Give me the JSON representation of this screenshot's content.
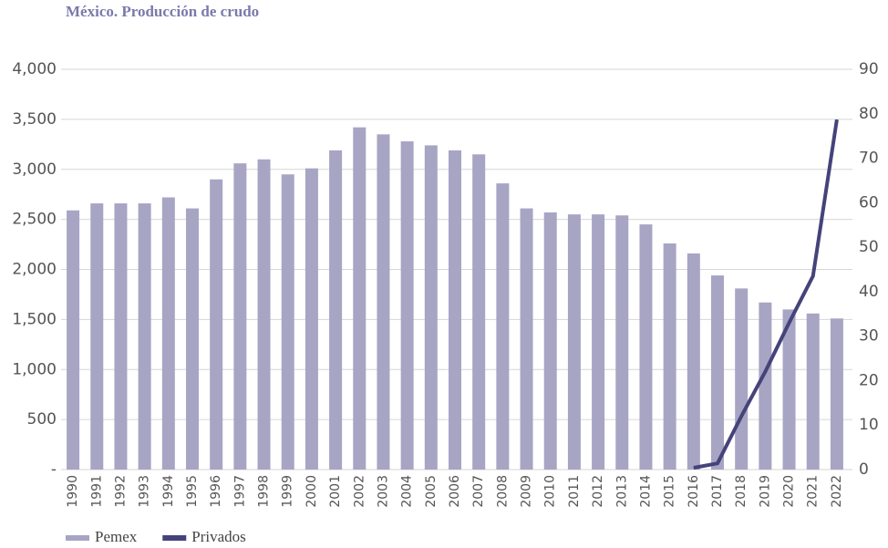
{
  "chart_data": {
    "type": "bar+line",
    "title": "México. Producción de crudo",
    "categories": [
      "1990",
      "1991",
      "1992",
      "1993",
      "1994",
      "1995",
      "1996",
      "1997",
      "1998",
      "1999",
      "2000",
      "2001",
      "2002",
      "2003",
      "2004",
      "2005",
      "2006",
      "2007",
      "2008",
      "2009",
      "2010",
      "2011",
      "2012",
      "2013",
      "2014",
      "2015",
      "2016",
      "2017",
      "2018",
      "2019",
      "2020",
      "2021",
      "2022"
    ],
    "series": [
      {
        "name": "Pemex",
        "type": "bar",
        "color": "#a7a5c3",
        "values": [
          2590,
          2660,
          2660,
          2660,
          2720,
          2610,
          2900,
          3060,
          3100,
          2950,
          3010,
          3190,
          3420,
          3350,
          3280,
          3240,
          3190,
          3150,
          2860,
          2610,
          2570,
          2550,
          2550,
          2540,
          2450,
          2260,
          2160,
          1940,
          1810,
          1670,
          1600,
          1560,
          1510
        ]
      },
      {
        "name": "Privados",
        "type": "line",
        "axis": "y2",
        "color": "#45437a",
        "values": [
          null,
          null,
          null,
          null,
          null,
          null,
          null,
          null,
          null,
          null,
          null,
          null,
          null,
          null,
          null,
          null,
          null,
          null,
          null,
          null,
          null,
          null,
          null,
          null,
          null,
          null,
          0.4,
          1.4,
          12,
          22,
          33,
          43.5,
          78.7
        ]
      }
    ],
    "ylim": [
      0,
      4000
    ],
    "yticks": [
      {
        "value": 0,
        "label": "-"
      },
      500,
      {
        "value": 1000,
        "label": "1,000"
      },
      {
        "value": 1500,
        "label": "1,500"
      },
      {
        "value": 2000,
        "label": "2,000"
      },
      {
        "value": 2500,
        "label": "2,500"
      },
      {
        "value": 3000,
        "label": "3,000"
      },
      {
        "value": 3500,
        "label": "3,500"
      },
      {
        "value": 4000,
        "label": "4,000"
      }
    ],
    "y2lim": [
      0,
      90
    ],
    "y2ticks": [
      0,
      10,
      20,
      30,
      40,
      50,
      60,
      70,
      80,
      90
    ],
    "grid": true
  }
}
